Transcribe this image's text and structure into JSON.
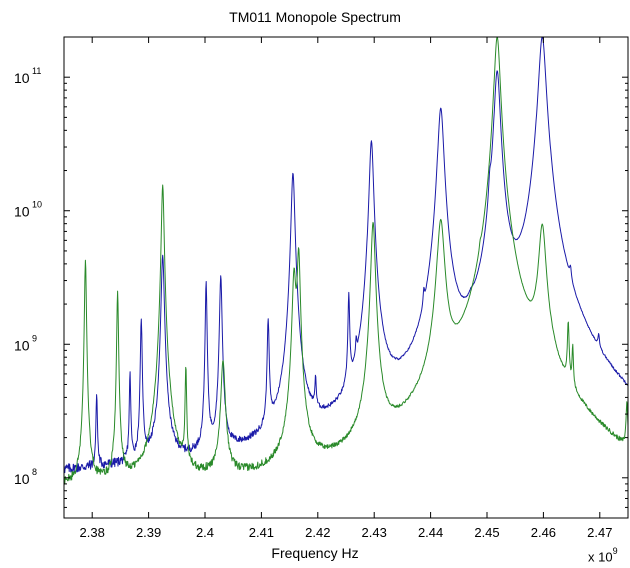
{
  "chart_data": {
    "type": "line",
    "title": "TM011 Monopole Spectrum",
    "xlabel": "Frequency Hz",
    "ylabel": "",
    "x_multiplier_label": "x 10",
    "x_multiplier_exponent": "9",
    "xscale": "linear",
    "yscale": "log",
    "xlim": [
      2.375,
      2.475
    ],
    "ylim": [
      50000000,
      200000000000
    ],
    "x_ticks": [
      2.38,
      2.39,
      2.4,
      2.41,
      2.42,
      2.43,
      2.44,
      2.45,
      2.46,
      2.47
    ],
    "x_tick_labels": [
      "2.38",
      "2.39",
      "2.4",
      "2.41",
      "2.42",
      "2.43",
      "2.44",
      "2.45",
      "2.46",
      "2.47"
    ],
    "y_ticks": [
      {
        "value": 100000000,
        "base": "10",
        "exp": "8"
      },
      {
        "value": 1000000000,
        "base": "10",
        "exp": "9"
      },
      {
        "value": 10000000000,
        "base": "10",
        "exp": "10"
      },
      {
        "value": 100000000000,
        "base": "10",
        "exp": "11"
      }
    ],
    "grid": false,
    "legend": "none",
    "series": [
      {
        "color": "#1a1aa8",
        "baseline": [
          [
            2.375,
            95000000
          ],
          [
            2.4,
            100000000
          ],
          [
            2.42,
            110000000
          ],
          [
            2.43,
            130000000
          ],
          [
            2.44,
            160000000
          ],
          [
            2.45,
            220000000
          ],
          [
            2.455,
            300000000
          ],
          [
            2.46,
            300000000
          ],
          [
            2.465,
            170000000
          ],
          [
            2.475,
            120000000
          ]
        ],
        "peaks": [
          {
            "f": 2.3808,
            "amp": 310000000,
            "w": 0.00012
          },
          {
            "f": 2.3867,
            "amp": 480000000,
            "w": 0.00012
          },
          {
            "f": 2.3887,
            "amp": 1400000000,
            "w": 0.00014
          },
          {
            "f": 2.3925,
            "amp": 4500000000,
            "w": 0.00025
          },
          {
            "f": 2.4002,
            "amp": 2800000000,
            "w": 0.00014
          },
          {
            "f": 2.4028,
            "amp": 3100000000,
            "w": 0.0002
          },
          {
            "f": 2.4112,
            "amp": 1300000000,
            "w": 0.00015
          },
          {
            "f": 2.4156,
            "amp": 19000000000,
            "w": 0.0003
          },
          {
            "f": 2.4196,
            "amp": 240000000,
            "w": 0.00012
          },
          {
            "f": 2.4255,
            "amp": 1900000000,
            "w": 0.00014
          },
          {
            "f": 2.4268,
            "amp": 280000000,
            "w": 0.00012
          },
          {
            "f": 2.4295,
            "amp": 33000000000,
            "w": 0.00035
          },
          {
            "f": 2.4388,
            "amp": 600000000,
            "w": 0.00012
          },
          {
            "f": 2.4418,
            "amp": 58000000000,
            "w": 0.0005
          },
          {
            "f": 2.4472,
            "amp": 200000000,
            "w": 0.0005
          },
          {
            "f": 2.4505,
            "amp": 5300000000,
            "w": 0.00022
          },
          {
            "f": 2.4518,
            "amp": 110000000000,
            "w": 0.0005
          },
          {
            "f": 2.4598,
            "amp": 200000000000,
            "w": 0.0006
          },
          {
            "f": 2.4648,
            "amp": 700000000,
            "w": 0.00018
          },
          {
            "f": 2.4698,
            "amp": 240000000,
            "w": 0.00015
          }
        ]
      },
      {
        "color": "#2a8a2a",
        "baseline": [
          [
            2.375,
            75000000
          ],
          [
            2.4,
            75000000
          ],
          [
            2.42,
            72000000
          ],
          [
            2.43,
            72000000
          ],
          [
            2.44,
            85000000
          ],
          [
            2.45,
            110000000
          ],
          [
            2.455,
            150000000
          ],
          [
            2.46,
            150000000
          ],
          [
            2.465,
            110000000
          ],
          [
            2.475,
            65000000
          ]
        ],
        "peaks": [
          {
            "f": 2.3788,
            "amp": 4200000000,
            "w": 0.00014
          },
          {
            "f": 2.3845,
            "amp": 2400000000,
            "w": 0.00014
          },
          {
            "f": 2.3925,
            "amp": 15500000000,
            "w": 0.00022
          },
          {
            "f": 2.3966,
            "amp": 560000000,
            "w": 0.00012
          },
          {
            "f": 2.4032,
            "amp": 650000000,
            "w": 0.00035
          },
          {
            "f": 2.4158,
            "amp": 3200000000,
            "w": 0.0003
          },
          {
            "f": 2.4166,
            "amp": 4800000000,
            "w": 0.00025
          },
          {
            "f": 2.4298,
            "amp": 8000000000,
            "w": 0.00035
          },
          {
            "f": 2.4418,
            "amp": 8000000000,
            "w": 0.0006
          },
          {
            "f": 2.4488,
            "amp": 560000000,
            "w": 0.00014
          },
          {
            "f": 2.4518,
            "amp": 200000000000,
            "w": 0.0005
          },
          {
            "f": 2.4598,
            "amp": 7000000000,
            "w": 0.0006
          },
          {
            "f": 2.4644,
            "amp": 950000000,
            "w": 0.00015
          },
          {
            "f": 2.4652,
            "amp": 500000000,
            "w": 0.00012
          },
          {
            "f": 2.4748,
            "amp": 200000000,
            "w": 0.00015
          }
        ]
      }
    ]
  }
}
